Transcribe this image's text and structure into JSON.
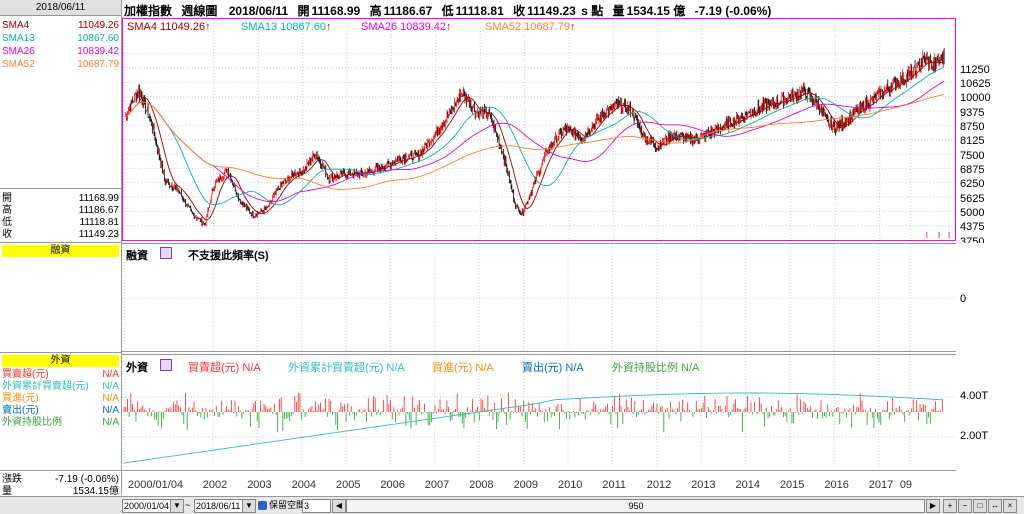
{
  "window": {
    "accent_border": "#ff00ff"
  },
  "left_panel": {
    "date": "2018/06/11",
    "sma": [
      {
        "name": "SMA4",
        "value": "11049.26",
        "color": "#a00000"
      },
      {
        "name": "SMA13",
        "value": "10867.60",
        "color": "#00b4b4"
      },
      {
        "name": "SMA26",
        "value": "10839.42",
        "color": "#e000e0"
      },
      {
        "name": "SMA52",
        "value": "10687.79",
        "color": "#ff7f27"
      }
    ],
    "ohlc": [
      {
        "label": "開",
        "value": "11168.99"
      },
      {
        "label": "高",
        "value": "11186.67"
      },
      {
        "label": "低",
        "value": "11118.81"
      },
      {
        "label": "收",
        "value": "11149.23"
      }
    ],
    "margin_title": "融資",
    "foreign_title": "外資",
    "foreign_rows": [
      {
        "label": "買賣超(元)",
        "value": "N/A",
        "color": "#ff3030"
      },
      {
        "label": "外資累計買賣超(元)",
        "value": "N/A",
        "color": "#30c0c0"
      },
      {
        "label": "買進(元)",
        "value": "N/A",
        "color": "#ff8c00"
      },
      {
        "label": "賣出(元)",
        "value": "N/A",
        "color": "#0070c0"
      },
      {
        "label": "外資持股比例",
        "value": "N/A",
        "color": "#40a040"
      }
    ],
    "change": {
      "label": "漲跌",
      "value": "-7.19 (-0.06%)"
    },
    "volume": {
      "label": "量",
      "value": "1534.15億"
    }
  },
  "header": {
    "index_name": "加權指數",
    "period": "週線圖",
    "date": "2018/06/11",
    "open_label": "開",
    "open": "11168.99",
    "high_label": "高",
    "high": "11186.67",
    "low_label": "低",
    "low": "11118.81",
    "close_label": "收",
    "close": "11149.23",
    "unit": "s 點",
    "volume_label": "量",
    "volume": "1534.15 億",
    "change": "-7.19 (-0.06%)"
  },
  "price_legend": [
    {
      "name": "SMA4",
      "value": "11049.26",
      "color": "#a00000"
    },
    {
      "name": "SMA13",
      "value": "10867.60",
      "color": "#00b4b4"
    },
    {
      "name": "SMA26",
      "value": "10839.42",
      "color": "#e000e0"
    },
    {
      "name": "SMA52",
      "value": "10687.79",
      "color": "#ff7f27"
    }
  ],
  "margin_pane": {
    "title": "融資",
    "message": "不支援此頻率(S)",
    "axis_zero": "0"
  },
  "foreign_pane": {
    "title": "外資",
    "legend": [
      {
        "text": "買賣超(元) N/A",
        "color": "#ff3030"
      },
      {
        "text": "外資累計買賣超(元) N/A",
        "color": "#30c0c0"
      },
      {
        "text": "買進(元) N/A",
        "color": "#ff8c00"
      },
      {
        "text": "賣出(元) N/A",
        "color": "#0070c0"
      },
      {
        "text": "外資持股比例 N/A",
        "color": "#40a040"
      }
    ],
    "axis_labels": [
      "4.00T",
      "2.00T"
    ]
  },
  "toolbar": {
    "start_date": "2000/01/04",
    "tilde": "~",
    "end_date": "2018/06/11",
    "reserve_label": "保留空間",
    "reserve_value": "3",
    "scroll_value": "950"
  },
  "chart_data": {
    "type": "candlestick",
    "title": "加權指數 週線圖",
    "x_tick_labels": [
      "2000/01/04",
      "2002",
      "2003",
      "2004",
      "2005",
      "2006",
      "2007",
      "2008",
      "2009",
      "2010",
      "2011",
      "2012",
      "2013",
      "2014",
      "2015",
      "2016",
      "2017",
      "09"
    ],
    "y_tick_labels": [
      "11250",
      "10625",
      "10000",
      "9375",
      "8750",
      "8125",
      "7500",
      "6875",
      "6250",
      "5625",
      "5000",
      "4375",
      "3750"
    ],
    "ylim": [
      3300,
      11800
    ],
    "close_path": {
      "x": [
        2000.0,
        2000.3,
        2000.6,
        2000.9,
        2001.2,
        2001.5,
        2001.8,
        2002.0,
        2002.3,
        2002.6,
        2002.9,
        2003.2,
        2003.5,
        2003.8,
        2004.0,
        2004.3,
        2004.6,
        2004.9,
        2005.3,
        2005.8,
        2006.2,
        2006.6,
        2007.0,
        2007.4,
        2007.6,
        2007.9,
        2008.2,
        2008.5,
        2008.8,
        2008.95,
        2009.2,
        2009.5,
        2009.9,
        2010.3,
        2010.8,
        2011.1,
        2011.4,
        2011.7,
        2012.0,
        2012.3,
        2012.8,
        2013.3,
        2013.8,
        2014.3,
        2014.8,
        2015.3,
        2015.6,
        2015.8,
        2016.0,
        2016.4,
        2016.8,
        2017.3,
        2017.8,
        2018.0,
        2018.2,
        2018.45
      ],
      "close": [
        8500,
        9700,
        8200,
        5700,
        5300,
        4300,
        3800,
        5500,
        6200,
        4800,
        4200,
        4500,
        5500,
        6000,
        6100,
        6900,
        5800,
        6000,
        6000,
        6300,
        6700,
        6800,
        7800,
        8900,
        9600,
        8700,
        8600,
        7000,
        4600,
        4300,
        5500,
        7000,
        8000,
        7600,
        8700,
        9000,
        8800,
        7600,
        7200,
        7700,
        7500,
        7900,
        8400,
        8900,
        9200,
        9600,
        9100,
        8300,
        8000,
        8600,
        9200,
        9900,
        10500,
        11000,
        10700,
        11150
      ]
    },
    "series": [
      {
        "name": "SMA4",
        "value": 11049.26
      },
      {
        "name": "SMA13",
        "value": 10867.6
      },
      {
        "name": "SMA26",
        "value": 10839.42
      },
      {
        "name": "SMA52",
        "value": 10687.79
      }
    ],
    "grid": true,
    "legend_position": "top-left"
  }
}
